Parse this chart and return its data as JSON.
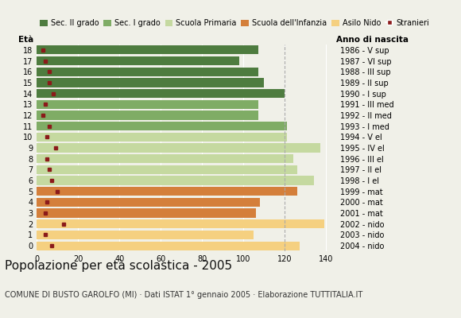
{
  "ages": [
    18,
    17,
    16,
    15,
    14,
    13,
    12,
    11,
    10,
    9,
    8,
    7,
    6,
    5,
    4,
    3,
    2,
    1,
    0
  ],
  "years": [
    "1986 - V sup",
    "1987 - VI sup",
    "1988 - III sup",
    "1989 - II sup",
    "1990 - I sup",
    "1991 - III med",
    "1992 - II med",
    "1993 - I med",
    "1994 - V el",
    "1995 - IV el",
    "1996 - III el",
    "1997 - II el",
    "1998 - I el",
    "1999 - mat",
    "2000 - mat",
    "2001 - mat",
    "2002 - nido",
    "2003 - nido",
    "2004 - nido"
  ],
  "values": [
    107,
    98,
    107,
    110,
    120,
    107,
    107,
    121,
    121,
    137,
    124,
    126,
    134,
    126,
    108,
    106,
    139,
    105,
    127
  ],
  "stranieri": [
    3,
    4,
    6,
    6,
    8,
    4,
    3,
    6,
    5,
    9,
    5,
    6,
    7,
    10,
    5,
    4,
    13,
    4,
    7
  ],
  "categories": {
    "Sec. II grado": {
      "ages": [
        14,
        15,
        16,
        17,
        18
      ],
      "color": "#4e7c3f"
    },
    "Sec. I grado": {
      "ages": [
        11,
        12,
        13
      ],
      "color": "#7fac65"
    },
    "Scuola Primaria": {
      "ages": [
        6,
        7,
        8,
        9,
        10
      ],
      "color": "#c5d9a0"
    },
    "Scuola dell'Infanzia": {
      "ages": [
        3,
        4,
        5
      ],
      "color": "#d47f3b"
    },
    "Asilo Nido": {
      "ages": [
        0,
        1,
        2
      ],
      "color": "#f5d080"
    }
  },
  "stranieri_color": "#8b1a1a",
  "title": "Popolazione per età scolastica - 2005",
  "subtitle": "COMUNE DI BUSTO GAROLFO (MI) · Dati ISTAT 1° gennaio 2005 · Elaborazione TUTTITALIA.IT",
  "xlabel_eta": "Età",
  "xlabel_anno": "Anno di nascita",
  "xlim": [
    0,
    145
  ],
  "xticks": [
    0,
    20,
    40,
    60,
    80,
    100,
    120,
    140
  ],
  "dashed_line_x": 120,
  "background_color": "#f0f0e8",
  "bar_height": 0.82,
  "title_fontsize": 11,
  "subtitle_fontsize": 7,
  "tick_fontsize": 7,
  "label_fontsize": 7.5,
  "legend_fontsize": 7
}
